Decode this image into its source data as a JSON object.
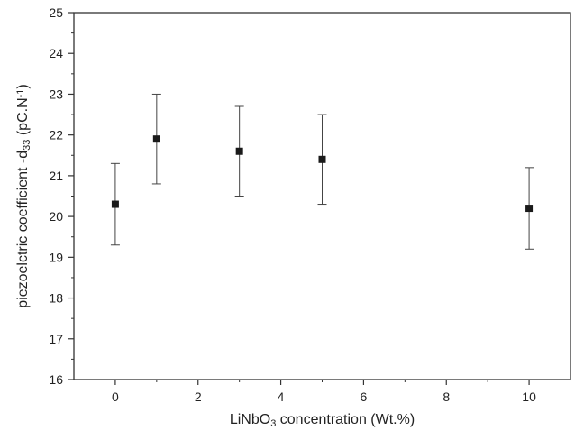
{
  "chart_data": {
    "type": "scatter",
    "title": "",
    "xlabel": {
      "parts": [
        {
          "text": "LiNbO",
          "style": "normal"
        },
        {
          "text": "3",
          "style": "sub"
        },
        {
          "text": " concentration (Wt.%)",
          "style": "normal"
        }
      ]
    },
    "ylabel": {
      "parts": [
        {
          "text": "piezoelctric coefficient -d",
          "style": "normal"
        },
        {
          "text": "33",
          "style": "sub"
        },
        {
          "text": " (pC.N",
          "style": "normal"
        },
        {
          "text": "-1",
          "style": "sup"
        },
        {
          "text": ")",
          "style": "normal"
        }
      ]
    },
    "xlim": [
      -1,
      11
    ],
    "ylim": [
      16,
      25
    ],
    "x_ticks": [
      0,
      2,
      4,
      6,
      8,
      10
    ],
    "y_ticks": [
      16,
      17,
      18,
      19,
      20,
      21,
      22,
      23,
      24,
      25
    ],
    "grid": false,
    "legend": "none",
    "marker": "square",
    "colors": {
      "marker": "#1a1a1a",
      "axis": "#333333",
      "errorbar": "#444444"
    },
    "series": [
      {
        "x": [
          0,
          1,
          3,
          5,
          10
        ],
        "y": [
          20.3,
          21.9,
          21.6,
          21.4,
          20.2
        ],
        "yerr": [
          1.0,
          1.1,
          1.1,
          1.1,
          1.0
        ]
      }
    ]
  }
}
